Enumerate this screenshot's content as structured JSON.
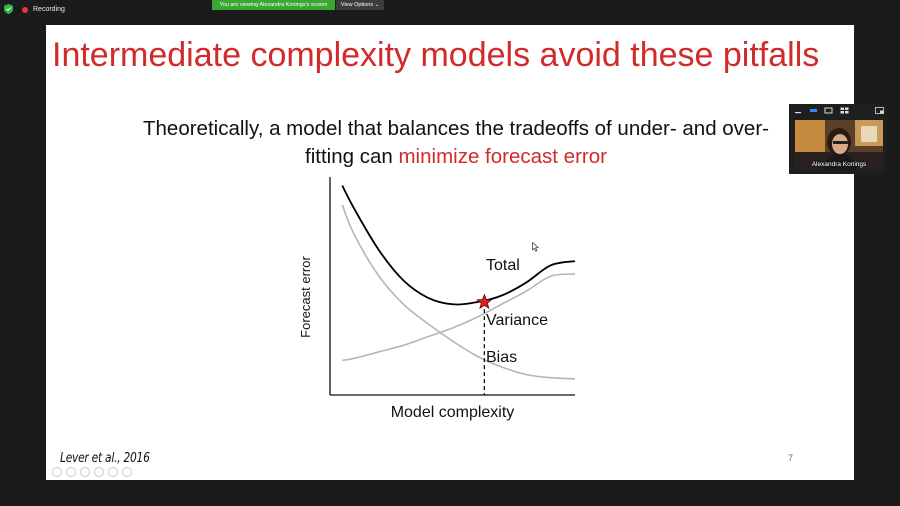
{
  "meeting": {
    "recording_label": "Recording",
    "viewing_banner": "You are viewing Alexandra Konings's screen",
    "view_options_label": "View Options",
    "participant_name": "Alexandra Konings"
  },
  "slide": {
    "title": "Intermediate complexity models avoid these pitfalls",
    "subtitle_line1": "Theoretically, a model that balances the tradeoffs of under- and over-",
    "subtitle_line2_plain": "fitting can ",
    "subtitle_line2_highlight": "minimize forecast error",
    "citation": "Lever et al., 2016",
    "page_number": "7"
  },
  "colors": {
    "title_red": "#d12a2a",
    "recording_red": "#e53935",
    "banner_green": "#38a832",
    "star_red": "#e02020",
    "curve_gray": "#b5b5b5"
  },
  "chart_data": {
    "type": "line",
    "xlabel": "Model complexity",
    "ylabel": "Forecast error",
    "xlim": [
      0,
      10
    ],
    "ylim": [
      0,
      10
    ],
    "grid": false,
    "ticks": false,
    "series": [
      {
        "name": "Total",
        "x": [
          0.5,
          1,
          2,
          3,
          4,
          5,
          6,
          7,
          8,
          9,
          10
        ],
        "y": [
          9.7,
          8.6,
          6.7,
          5.3,
          4.5,
          4.2,
          4.3,
          4.6,
          5.2,
          6.0,
          6.2
        ]
      },
      {
        "name": "Variance",
        "x": [
          0.5,
          1,
          2,
          3,
          4,
          5,
          6,
          7,
          8,
          9,
          10
        ],
        "y": [
          1.6,
          1.7,
          2.0,
          2.3,
          2.7,
          3.1,
          3.6,
          4.2,
          4.8,
          5.5,
          5.6
        ]
      },
      {
        "name": "Bias",
        "x": [
          0.5,
          1,
          2,
          3,
          4,
          5,
          6,
          7,
          8,
          9,
          10
        ],
        "y": [
          8.8,
          7.4,
          5.5,
          4.2,
          3.3,
          2.5,
          1.8,
          1.3,
          0.95,
          0.8,
          0.75
        ]
      }
    ],
    "optimum": {
      "x": 6.3,
      "y": 4.3,
      "marker": "star",
      "dashed_drop_line": true
    }
  }
}
